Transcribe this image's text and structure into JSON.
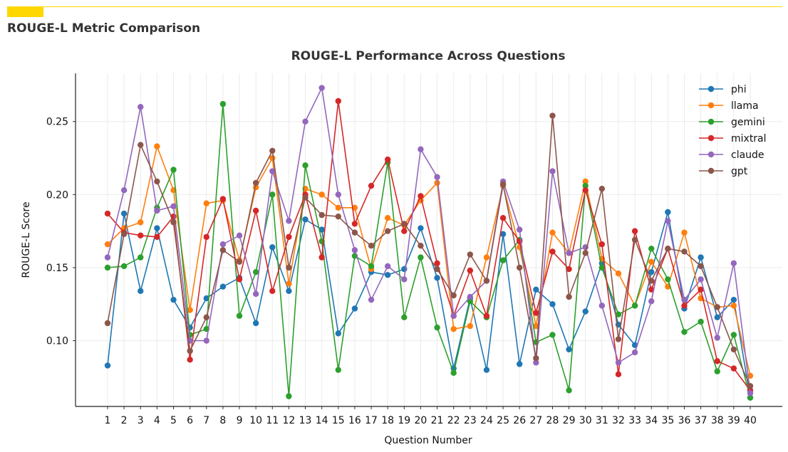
{
  "page": {
    "title": "ROUGE-L Metric Comparison",
    "accent_color": "#ffd700"
  },
  "chart_data": {
    "type": "line",
    "title": "ROUGE-L Performance Across Questions",
    "xlabel": "Question Number",
    "ylabel": "ROUGE-L Score",
    "x": [
      1,
      2,
      3,
      4,
      5,
      6,
      7,
      8,
      9,
      10,
      11,
      12,
      13,
      14,
      15,
      16,
      17,
      18,
      19,
      20,
      21,
      22,
      23,
      24,
      25,
      26,
      27,
      28,
      29,
      30,
      31,
      32,
      33,
      34,
      35,
      36,
      37,
      38,
      39,
      40
    ],
    "yticks": [
      "0.10",
      "0.15",
      "0.20",
      "0.25"
    ],
    "ylim": [
      0.055,
      0.283
    ],
    "grid": true,
    "legend_position": "top-right",
    "series": [
      {
        "name": "phi",
        "color": "#1f77b4",
        "values": [
          0.083,
          0.187,
          0.134,
          0.177,
          0.128,
          0.109,
          0.129,
          0.137,
          0.143,
          0.112,
          0.164,
          0.134,
          0.183,
          0.176,
          0.105,
          0.122,
          0.147,
          0.145,
          0.149,
          0.177,
          0.143,
          0.081,
          0.129,
          0.08,
          0.173,
          0.084,
          0.135,
          0.125,
          0.094,
          0.12,
          0.153,
          0.111,
          0.097,
          0.147,
          0.188,
          0.122,
          0.157,
          0.116,
          0.128,
          0.061
        ]
      },
      {
        "name": "llama",
        "color": "#ff7f0e",
        "values": [
          0.166,
          0.177,
          0.181,
          0.233,
          0.203,
          0.121,
          0.194,
          0.196,
          0.155,
          0.205,
          0.225,
          0.139,
          0.204,
          0.2,
          0.191,
          0.191,
          0.149,
          0.184,
          0.179,
          0.196,
          0.208,
          0.108,
          0.11,
          0.157,
          0.206,
          0.164,
          0.11,
          0.174,
          0.16,
          0.209,
          0.156,
          0.146,
          0.124,
          0.154,
          0.137,
          0.174,
          0.129,
          0.123,
          0.124,
          0.076
        ]
      },
      {
        "name": "gemini",
        "color": "#2ca02c",
        "values": [
          0.15,
          0.151,
          0.157,
          0.191,
          0.217,
          0.104,
          0.108,
          0.262,
          0.117,
          0.147,
          0.2,
          0.062,
          0.22,
          0.168,
          0.08,
          0.158,
          0.151,
          0.222,
          0.116,
          0.157,
          0.109,
          0.078,
          0.127,
          0.116,
          0.155,
          0.169,
          0.099,
          0.104,
          0.066,
          0.206,
          0.15,
          0.118,
          0.124,
          0.163,
          0.142,
          0.106,
          0.113,
          0.079,
          0.104,
          0.061
        ]
      },
      {
        "name": "mixtral",
        "color": "#d62728",
        "values": [
          0.187,
          0.174,
          0.172,
          0.171,
          0.185,
          0.087,
          0.171,
          0.197,
          0.142,
          0.189,
          0.134,
          0.171,
          0.2,
          0.157,
          0.264,
          0.18,
          0.206,
          0.224,
          0.175,
          0.199,
          0.153,
          0.117,
          0.148,
          0.117,
          0.184,
          0.168,
          0.119,
          0.161,
          0.149,
          0.203,
          0.166,
          0.077,
          0.175,
          0.135,
          0.163,
          0.124,
          0.135,
          0.086,
          0.081,
          0.066
        ]
      },
      {
        "name": "claude",
        "color": "#9467bd",
        "values": [
          0.157,
          0.203,
          0.26,
          0.189,
          0.192,
          0.1,
          0.1,
          0.166,
          0.172,
          0.132,
          0.216,
          0.182,
          0.25,
          0.273,
          0.2,
          0.162,
          0.128,
          0.151,
          0.142,
          0.231,
          0.212,
          0.117,
          0.13,
          0.141,
          0.209,
          0.176,
          0.085,
          0.216,
          0.16,
          0.164,
          0.124,
          0.085,
          0.092,
          0.127,
          0.182,
          0.128,
          0.142,
          0.102,
          0.153,
          0.064
        ]
      },
      {
        "name": "gpt",
        "color": "#8c564b",
        "values": [
          0.112,
          0.173,
          0.234,
          0.209,
          0.181,
          0.093,
          0.116,
          0.162,
          0.154,
          0.208,
          0.23,
          0.15,
          0.198,
          0.186,
          0.185,
          0.174,
          0.165,
          0.175,
          0.18,
          0.165,
          0.149,
          0.131,
          0.159,
          0.141,
          0.207,
          0.15,
          0.088,
          0.254,
          0.13,
          0.16,
          0.204,
          0.101,
          0.169,
          0.141,
          0.163,
          0.161,
          0.151,
          0.123,
          0.094,
          0.069
        ]
      }
    ]
  }
}
